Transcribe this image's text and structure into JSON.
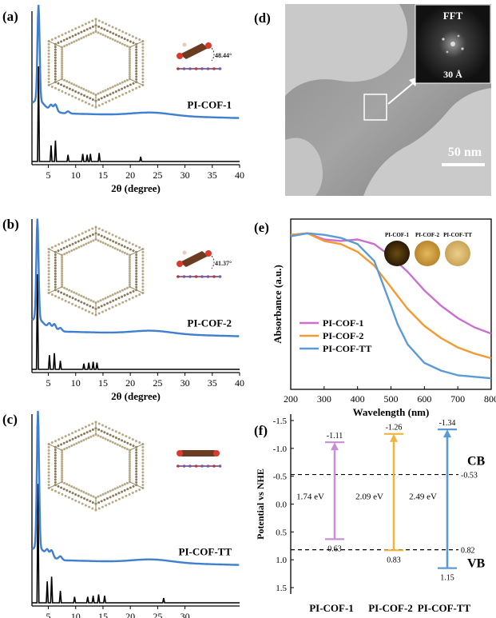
{
  "panels": [
    {
      "id": "a",
      "letter": "(a)",
      "label": "PI-COF-1",
      "angle": "48.44°",
      "x_ticks": [
        5,
        10,
        15,
        20,
        25,
        30,
        35,
        40
      ],
      "xlabel": "2θ (degree)",
      "xlim": [
        2,
        40
      ],
      "peaks": [
        [
          3.2,
          1.0
        ],
        [
          5.5,
          0.17
        ],
        [
          6.3,
          0.22
        ],
        [
          8.6,
          0.07
        ],
        [
          11.3,
          0.08
        ],
        [
          12.1,
          0.07
        ],
        [
          12.7,
          0.08
        ],
        [
          14.3,
          0.09
        ],
        [
          21.9,
          0.05
        ]
      ],
      "baseline": 0.58,
      "main_peak": 0.97
    },
    {
      "id": "b",
      "letter": "(b)",
      "label": "PI-COF-2",
      "angle": "41.37°",
      "x_ticks": [
        5,
        10,
        15,
        20,
        25,
        30,
        35,
        40
      ],
      "xlabel": "2θ (degree)",
      "xlim": [
        2,
        40
      ],
      "peaks": [
        [
          3.0,
          1.0
        ],
        [
          5.2,
          0.15
        ],
        [
          6.1,
          0.17
        ],
        [
          7.2,
          0.09
        ],
        [
          11.5,
          0.06
        ],
        [
          12.4,
          0.07
        ],
        [
          13.2,
          0.08
        ],
        [
          13.9,
          0.07
        ]
      ],
      "baseline": 0.34,
      "main_peak": 0.93
    },
    {
      "id": "c",
      "letter": "(c)",
      "label": "PI-COF-TT",
      "angle": "",
      "x_ticks": [
        5,
        10,
        15,
        20,
        25,
        30
      ],
      "xlabel": "2θ (degree)",
      "xlim": [
        2,
        40
      ],
      "peaks": [
        [
          3.1,
          1.0
        ],
        [
          4.8,
          0.18
        ],
        [
          5.6,
          0.22
        ],
        [
          7.2,
          0.1
        ],
        [
          9.8,
          0.05
        ],
        [
          12.2,
          0.05
        ],
        [
          13.2,
          0.06
        ],
        [
          14.2,
          0.07
        ],
        [
          15.3,
          0.06
        ],
        [
          26.1,
          0.04
        ]
      ],
      "baseline": 0.36,
      "main_peak": 0.96
    }
  ],
  "tem": {
    "letter": "(d)",
    "scale_bar": "50 nm",
    "fft_title": "FFT",
    "fft_spacing": "30 Å"
  },
  "chart_data": [
    {
      "type": "line",
      "panel": "(e)",
      "xlabel": "Wavelength (nm)",
      "ylabel": "Absorbance (a.u.)",
      "xlim": [
        200,
        800
      ],
      "x_ticks": [
        200,
        300,
        400,
        500,
        600,
        700,
        800
      ],
      "legend_position": "bottom-left",
      "swatches": [
        "PI-COF-1",
        "PI-COF-2",
        "PI-COF-TT"
      ],
      "series": [
        {
          "name": "PI-COF-1",
          "color": "#cc6fcf",
          "x": [
            200,
            250,
            300,
            350,
            400,
            450,
            500,
            550,
            600,
            650,
            700,
            750,
            800
          ],
          "y": [
            0.96,
            0.97,
            0.93,
            0.92,
            0.93,
            0.9,
            0.82,
            0.72,
            0.6,
            0.5,
            0.42,
            0.36,
            0.32
          ]
        },
        {
          "name": "PI-COF-2",
          "color": "#f39a32",
          "x": [
            200,
            250,
            300,
            350,
            400,
            450,
            500,
            550,
            600,
            650,
            700,
            750,
            800
          ],
          "y": [
            0.96,
            0.97,
            0.92,
            0.9,
            0.85,
            0.76,
            0.62,
            0.48,
            0.37,
            0.29,
            0.23,
            0.19,
            0.16
          ]
        },
        {
          "name": "PI-COF-TT",
          "color": "#5b9bd5",
          "x": [
            200,
            250,
            300,
            350,
            400,
            450,
            500,
            520,
            550,
            600,
            650,
            700,
            750,
            800
          ],
          "y": [
            0.95,
            0.97,
            0.96,
            0.94,
            0.9,
            0.79,
            0.5,
            0.38,
            0.25,
            0.13,
            0.08,
            0.05,
            0.04,
            0.03
          ]
        }
      ]
    },
    {
      "type": "bar",
      "panel": "(f)",
      "ylabel": "Potential vs NHE",
      "ylim": [
        -1.5,
        1.5
      ],
      "y_ticks": [
        -1.5,
        -1.0,
        -0.5,
        0.0,
        0.5,
        1.0,
        1.5
      ],
      "y_tick_labels": [
        "-1.5",
        "-1.0",
        "-0.5",
        "0.0",
        "0.5",
        "1.0",
        "1.5"
      ],
      "categories": [
        "PI-COF-1",
        "PI-COF-2",
        "PI-COF-TT"
      ],
      "cb": [
        -1.11,
        -1.26,
        -1.34
      ],
      "vb": [
        0.63,
        0.83,
        1.15
      ],
      "cb_labels": [
        "-1.11",
        "-1.26",
        "-1.34"
      ],
      "vb_labels": [
        "0.63",
        "0.83",
        "1.15"
      ],
      "gaps": [
        "1.74 eV",
        "2.09 eV",
        "2.49 eV"
      ],
      "colors": [
        "#c98fd6",
        "#f0b53f",
        "#5b9bd5"
      ],
      "reference_lines": [
        {
          "value": -0.53,
          "label": "-0.53",
          "tag": "CB"
        },
        {
          "value": 0.82,
          "label": "0.82",
          "tag": "VB"
        }
      ]
    }
  ]
}
